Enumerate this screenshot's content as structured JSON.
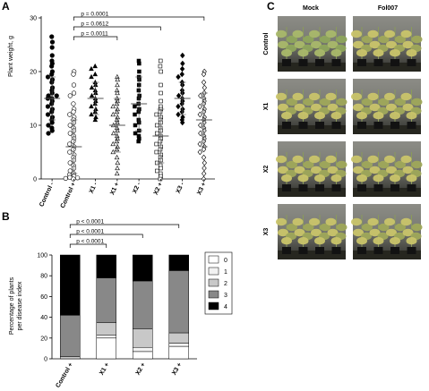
{
  "panels": {
    "A": {
      "letter": "A",
      "chart_data": {
        "type": "scatter",
        "ylabel": "Plant weight, g",
        "ylim": [
          0,
          30
        ],
        "yticks": [
          "0",
          "10",
          "20",
          "30"
        ],
        "categories": [
          "Control -",
          "Control +",
          "X1 -",
          "X1 +",
          "X2 -",
          "X2 +",
          "X3 -",
          "X3 +"
        ],
        "markers": [
          "filled-circle",
          "open-circle",
          "filled-triangle",
          "open-triangle",
          "filled-square",
          "open-square",
          "filled-diamond",
          "open-diamond"
        ],
        "means": [
          15,
          6,
          15,
          10,
          14,
          8,
          15,
          11
        ],
        "sd": [
          4,
          5,
          3,
          5,
          5,
          5,
          3,
          5
        ],
        "values": [
          [
            26.5,
            25.5,
            24.5,
            23,
            22,
            21.5,
            21,
            20,
            19.5,
            19,
            18.5,
            18,
            17,
            16.5,
            16,
            15.5,
            15.5,
            15,
            15,
            14.5,
            14,
            13.5,
            13,
            12.5,
            12,
            11.5,
            11,
            10.5,
            10,
            9.5,
            9,
            8.5
          ],
          [
            20,
            19.5,
            17.5,
            16,
            15.5,
            14,
            13,
            12.5,
            12,
            11.5,
            11,
            10.5,
            10,
            9.5,
            9,
            8.5,
            8,
            7.5,
            7,
            6.5,
            6,
            5.5,
            5,
            4.5,
            4,
            3.5,
            3,
            2.5,
            2,
            1.5,
            1,
            0.8,
            0.5,
            0.3,
            0.2,
            0.1,
            0
          ],
          [
            21,
            20.5,
            19.5,
            19,
            18,
            17.5,
            17,
            16.5,
            16,
            15.5,
            15,
            14.5,
            14,
            13.5,
            13,
            12.5,
            12,
            11.5,
            11
          ],
          [
            19,
            18.5,
            17.5,
            16.5,
            16,
            15,
            14.5,
            14,
            13.5,
            13,
            12.5,
            12,
            11.5,
            11,
            10.5,
            10,
            9.5,
            9,
            8.5,
            8,
            7.5,
            7,
            6.5,
            6,
            5.5,
            5,
            4,
            3,
            2,
            1
          ],
          [
            22,
            21.5,
            20,
            19,
            18.5,
            17.5,
            16.5,
            15.5,
            15,
            14,
            13.5,
            13,
            12.5,
            12,
            11,
            10.5,
            10,
            9,
            8.5,
            8,
            7.5,
            7
          ],
          [
            22,
            21,
            20,
            17.5,
            16,
            14.5,
            13.5,
            13,
            12.5,
            12,
            11.5,
            11,
            10.5,
            10,
            9.5,
            9,
            8.5,
            8,
            7.5,
            7,
            6.5,
            6,
            5.5,
            5,
            4.5,
            4,
            3.5,
            3,
            2.5,
            2,
            1.5,
            1,
            0.5,
            0
          ],
          [
            23,
            21.5,
            20.5,
            19.5,
            19,
            18,
            17.5,
            16.5,
            16,
            15.5,
            15,
            14.5,
            14,
            13.5,
            13,
            12.5,
            12,
            11.5,
            11,
            10.5
          ],
          [
            20,
            19.5,
            18,
            17,
            16,
            15.5,
            15,
            14.5,
            14,
            13.5,
            13,
            12.5,
            12,
            11.5,
            11,
            10.5,
            10,
            9.5,
            9,
            8.5,
            8,
            7.5,
            7,
            6.5,
            6,
            5.5,
            5,
            4,
            3,
            2,
            1,
            0
          ]
        ],
        "comparisons": [
          {
            "label": "p = 0.0001",
            "from": 1,
            "to": 7
          },
          {
            "label": "p = 0.0612",
            "from": 1,
            "to": 5
          },
          {
            "label": "p = 0.0011",
            "from": 1,
            "to": 3
          }
        ]
      }
    },
    "B": {
      "letter": "B",
      "chart_data": {
        "type": "bar",
        "stacked": true,
        "ylabel_lines": [
          "Percentage of plants",
          "per disease index"
        ],
        "ylim": [
          0,
          100
        ],
        "yticks": [
          "0",
          "20",
          "40",
          "60",
          "80",
          "100"
        ],
        "categories": [
          "Control +",
          "X1 +",
          "X2 +",
          "X3 +"
        ],
        "series": [
          {
            "name": "0",
            "color": "#ffffff",
            "values": [
              0,
              20,
              7,
              12
            ]
          },
          {
            "name": "1",
            "color": "#f2f2f2",
            "values": [
              0,
              3,
              4,
              3
            ]
          },
          {
            "name": "2",
            "color": "#c8c8c8",
            "values": [
              2,
              12,
              18,
              10
            ]
          },
          {
            "name": "3",
            "color": "#888888",
            "values": [
              40,
              43,
              46,
              60
            ]
          },
          {
            "name": "4",
            "color": "#000000",
            "values": [
              58,
              22,
              25,
              15
            ]
          }
        ],
        "legend_position": "right",
        "comparisons": [
          {
            "label": "p < 0.0001",
            "from": 0,
            "to": 3
          },
          {
            "label": "p < 0.0001",
            "from": 0,
            "to": 2
          },
          {
            "label": "p < 0.0001",
            "from": 0,
            "to": 1
          }
        ]
      }
    },
    "C": {
      "letter": "C",
      "columns": [
        "Mock",
        "Fol007"
      ],
      "rows": [
        "Control",
        "X1",
        "X2",
        "X3"
      ]
    }
  }
}
